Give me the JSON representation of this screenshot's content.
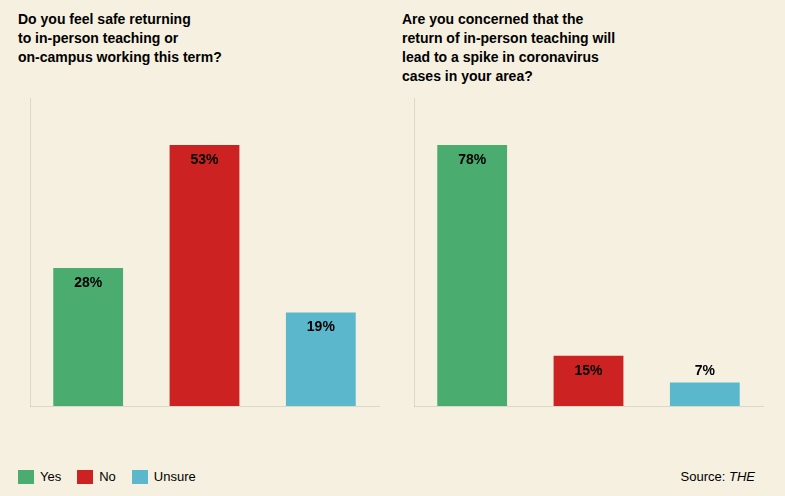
{
  "chart_data": [
    {
      "type": "bar",
      "title": "Do you feel safe returning\nto in-person teaching or\non-campus working this term?",
      "categories": [
        "Yes",
        "No",
        "Unsure"
      ],
      "values": [
        28,
        53,
        19
      ],
      "value_labels": [
        "28%",
        "53%",
        "19%"
      ],
      "colors": [
        "#4aad6f",
        "#cc2222",
        "#5bb8cc"
      ],
      "ylim": [
        0,
        62.54
      ],
      "data_labels": true,
      "tick_labels": false,
      "grid": false,
      "legend": "bottom left"
    },
    {
      "type": "bar",
      "title": "Are you concerned that the\nreturn of in-person teaching will\nlead to a spike in coronavirus\ncases in your area?",
      "categories": [
        "Yes",
        "No",
        "Unsure"
      ],
      "values": [
        78,
        15,
        7
      ],
      "value_labels": [
        "78%",
        "15%",
        "7%"
      ],
      "colors": [
        "#4aad6f",
        "#cc2222",
        "#5bb8cc"
      ],
      "ylim": [
        0,
        92.04
      ],
      "data_labels": true,
      "tick_labels": false,
      "grid": false,
      "annotations": [
        "Source: THE"
      ]
    }
  ]
}
